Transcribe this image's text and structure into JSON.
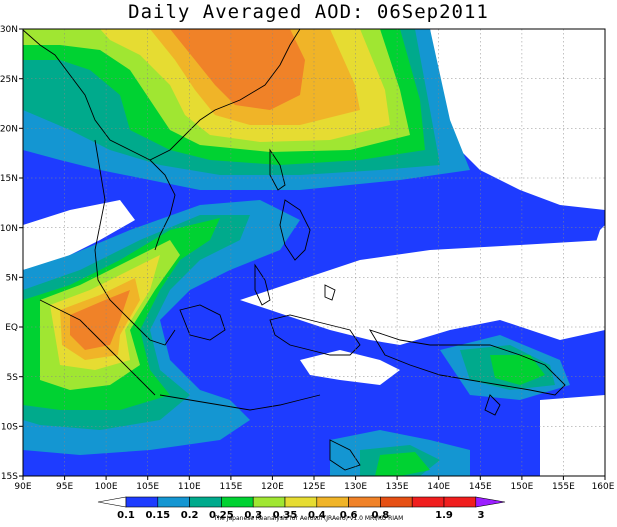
{
  "title": "Daily Averaged AOD: 06Sep2011",
  "axes": {
    "x_ticks": [
      "90E",
      "95E",
      "100E",
      "105E",
      "110E",
      "115E",
      "120E",
      "125E",
      "130E",
      "135E",
      "140E",
      "145E",
      "150E",
      "155E",
      "160E"
    ],
    "y_ticks": [
      "30N",
      "25N",
      "20N",
      "15N",
      "10N",
      "5N",
      "EQ",
      "5S",
      "10S",
      "15S"
    ]
  },
  "colorbar": {
    "labels": [
      "0.1",
      "0.15",
      "0.2",
      "0.25",
      "0.3",
      "0.35",
      "0.4",
      "0.6",
      "0.8",
      "1.9",
      "3"
    ],
    "colors": [
      "#ffffff",
      "#1e3cff",
      "#1496d2",
      "#00aa8c",
      "#00d232",
      "#a0e632",
      "#e6dc32",
      "#f0b428",
      "#f08228",
      "#e65014",
      "#f01e1e",
      "#9b1eff"
    ]
  },
  "credit": "The Japanese Reanalysis for Aerosol (JRAero) v1.0 MRI/KU RIAM"
}
